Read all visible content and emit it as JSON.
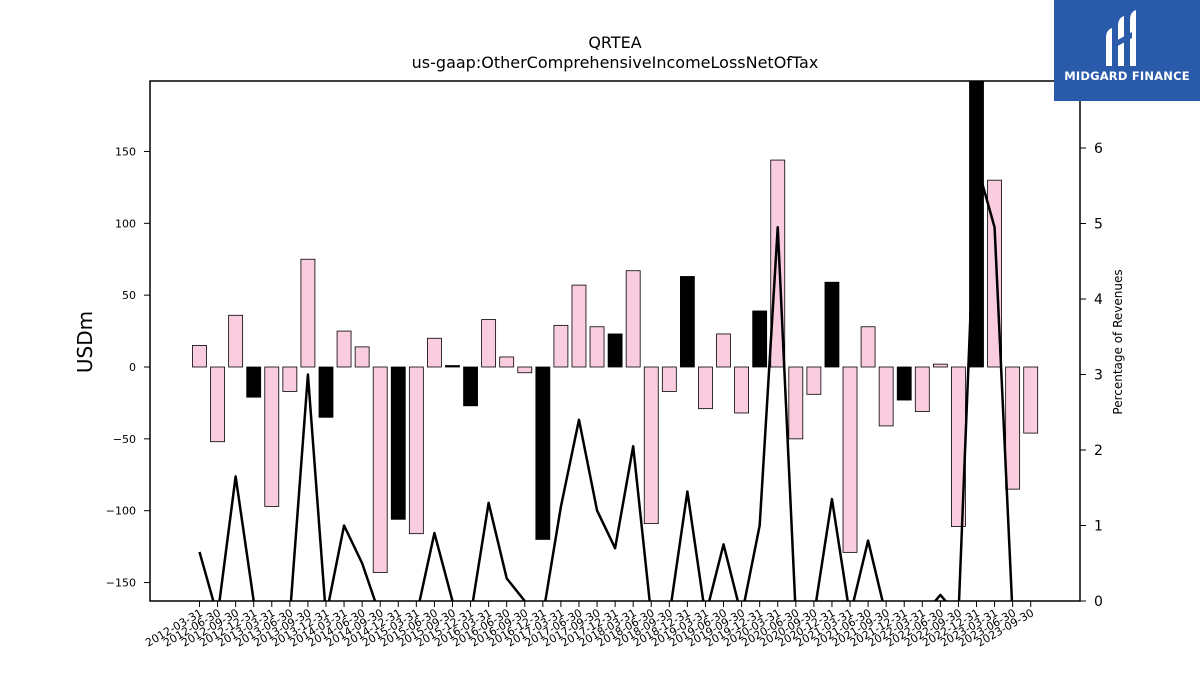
{
  "chart_data": {
    "type": "bar",
    "title": "QRTEA",
    "subtitle": "us-gaap:OtherComprehensiveIncomeLossNetOfTax",
    "ylabel": "USDm",
    "y2label": "Percentage of Revenues",
    "ylim": [
      -162,
      198
    ],
    "y2lim": [
      0,
      7
    ],
    "yticks": [
      150,
      100,
      50,
      0,
      -50,
      -100,
      -150
    ],
    "y2ticks": [
      0,
      1,
      2,
      3,
      4,
      5,
      6
    ],
    "x_tick_labels": [
      "2012-03-31",
      "2012-06-30",
      "2012-09-30",
      "2012-12-31",
      "2013-03-31",
      "2013-06-30",
      "2013-09-30",
      "2013-12-31",
      "2014-03-31",
      "2014-06-30",
      "2014-09-30",
      "2014-12-31",
      "2015-03-31",
      "2015-06-30",
      "2015-09-30",
      "2015-12-31",
      "2016-03-31",
      "2016-06-30",
      "2016-09-30",
      "2016-12-31",
      "2017-03-31",
      "2017-06-30",
      "2017-09-30",
      "2017-12-31",
      "2018-03-31",
      "2018-06-30",
      "2018-09-30",
      "2018-12-31",
      "2019-03-31",
      "2019-06-30",
      "2019-09-30",
      "2019-12-31",
      "2020-03-31",
      "2020-06-30",
      "2020-09-30",
      "2020-12-31",
      "2021-03-31",
      "2021-06-30",
      "2021-09-30",
      "2021-12-31",
      "2022-03-31",
      "2022-06-30",
      "2022-09-30",
      "2022-12-31",
      "2023-03-31",
      "2023-06-30",
      "2023-09-30"
    ],
    "colors": {
      "positive_bar": "#000000",
      "negative_bar": "#000000",
      "pink_bar": "#f9cce0",
      "line": "#000000"
    },
    "series": [
      {
        "values": [
          15,
          -52,
          36,
          -21,
          -97,
          -17,
          75,
          -35,
          25,
          14,
          -143,
          -106,
          -116,
          20,
          1,
          -27,
          33,
          7,
          -4,
          -120,
          29,
          57,
          28,
          23,
          67,
          -109,
          -17,
          63,
          -29,
          23,
          -32,
          39,
          144,
          -50,
          -19,
          59,
          -129,
          28,
          -41,
          -23,
          -31,
          2,
          -111,
          200,
          130,
          -85,
          -46
        ],
        "bar_style": [
          "pink",
          "pink",
          "pink",
          "black",
          "pink",
          "pink",
          "pink",
          "black",
          "pink",
          "pink",
          "pink",
          "black",
          "pink",
          "pink",
          "black",
          "black",
          "pink",
          "pink",
          "pink",
          "black",
          "pink",
          "pink",
          "pink",
          "black",
          "pink",
          "pink",
          "pink",
          "black",
          "pink",
          "pink",
          "pink",
          "black",
          "pink",
          "pink",
          "pink",
          "black",
          "pink",
          "pink",
          "pink",
          "black",
          "pink",
          "pink",
          "pink",
          "black",
          "pink",
          "pink",
          "pink"
        ]
      },
      {
        "values": [
          0.65,
          -0.2,
          1.65,
          0.0,
          -0.2,
          -0.2,
          3.0,
          -0.2,
          1.0,
          0.5,
          -0.2,
          -0.2,
          -0.2,
          0.9,
          0.0,
          -0.2,
          1.3,
          0.3,
          0.0,
          -0.2,
          1.25,
          2.4,
          1.2,
          0.7,
          2.05,
          -0.2,
          -0.2,
          1.45,
          -0.2,
          0.75,
          -0.2,
          1.0,
          4.95,
          -0.2,
          -0.2,
          1.35,
          -0.2,
          0.8,
          -0.2,
          -0.2,
          -0.2,
          0.08,
          -0.2,
          5.8,
          4.95,
          -0.2,
          -0.2
        ]
      }
    ],
    "grid": false
  },
  "logo": {
    "text": "MIDGARD FINANCE"
  }
}
